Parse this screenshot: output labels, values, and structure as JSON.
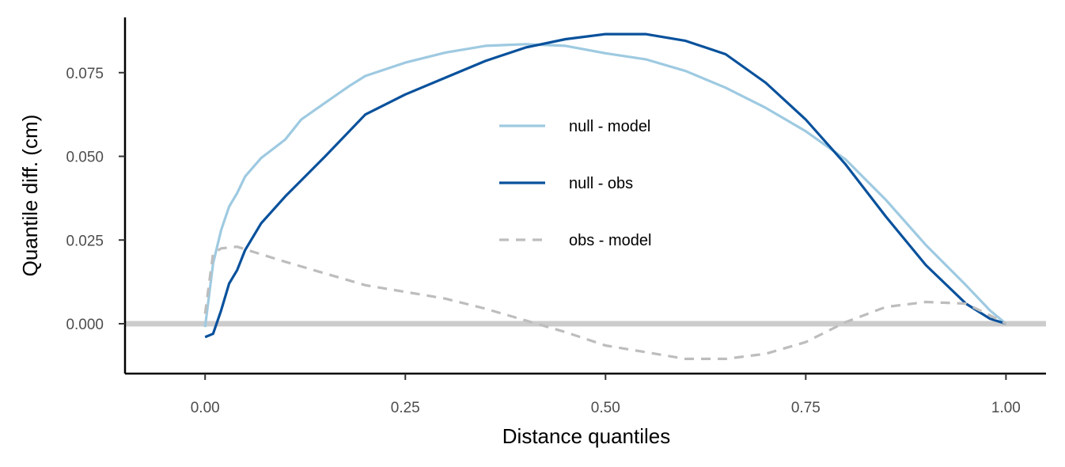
{
  "chart_data": {
    "type": "line",
    "title": "",
    "xlabel": "Distance quantiles",
    "ylabel": "Quantile diff. (cm)",
    "xlim": [
      -0.1,
      1.05
    ],
    "ylim": [
      -0.0149,
      0.0915
    ],
    "x_ticks": [
      {
        "value": 0,
        "label": "0.00"
      },
      {
        "value": 0.25,
        "label": "0.25"
      },
      {
        "value": 0.5,
        "label": "0.50"
      },
      {
        "value": 0.75,
        "label": "0.75"
      },
      {
        "value": 1,
        "label": "1.00"
      }
    ],
    "y_ticks": [
      {
        "value": 0,
        "label": "0.000"
      },
      {
        "value": 0.025,
        "label": "0.025"
      },
      {
        "value": 0.05,
        "label": "0.050"
      },
      {
        "value": 0.075,
        "label": "0.075"
      }
    ],
    "reference_line": {
      "y": 0,
      "color": "#cccccc"
    },
    "grid": false,
    "legend_position": "center",
    "series": [
      {
        "name": "null - model",
        "color": "#9ecae1",
        "dash": "solid",
        "points": [
          [
            0,
            -0.001
          ],
          [
            0.01,
            0.018
          ],
          [
            0.02,
            0.028
          ],
          [
            0.03,
            0.035
          ],
          [
            0.04,
            0.039
          ],
          [
            0.05,
            0.044
          ],
          [
            0.07,
            0.0495
          ],
          [
            0.1,
            0.055
          ],
          [
            0.12,
            0.061
          ],
          [
            0.15,
            0.066
          ],
          [
            0.18,
            0.071
          ],
          [
            0.2,
            0.074
          ],
          [
            0.25,
            0.078
          ],
          [
            0.3,
            0.081
          ],
          [
            0.35,
            0.083
          ],
          [
            0.4,
            0.0835
          ],
          [
            0.45,
            0.083
          ],
          [
            0.5,
            0.0808
          ],
          [
            0.55,
            0.079
          ],
          [
            0.6,
            0.0755
          ],
          [
            0.65,
            0.0705
          ],
          [
            0.7,
            0.0645
          ],
          [
            0.75,
            0.0575
          ],
          [
            0.8,
            0.049
          ],
          [
            0.85,
            0.037
          ],
          [
            0.9,
            0.0235
          ],
          [
            0.95,
            0.0115
          ],
          [
            0.98,
            0.004
          ],
          [
            1,
            0
          ]
        ]
      },
      {
        "name": "null - obs",
        "color": "#08519c",
        "dash": "solid",
        "points": [
          [
            0,
            -0.004
          ],
          [
            0.01,
            -0.003
          ],
          [
            0.02,
            0.004
          ],
          [
            0.03,
            0.012
          ],
          [
            0.04,
            0.016
          ],
          [
            0.05,
            0.022
          ],
          [
            0.07,
            0.03
          ],
          [
            0.1,
            0.038
          ],
          [
            0.15,
            0.05
          ],
          [
            0.2,
            0.0625
          ],
          [
            0.25,
            0.0685
          ],
          [
            0.3,
            0.0735
          ],
          [
            0.35,
            0.0785
          ],
          [
            0.4,
            0.0825
          ],
          [
            0.45,
            0.085
          ],
          [
            0.5,
            0.0865
          ],
          [
            0.55,
            0.0865
          ],
          [
            0.6,
            0.0845
          ],
          [
            0.65,
            0.0805
          ],
          [
            0.7,
            0.072
          ],
          [
            0.75,
            0.061
          ],
          [
            0.8,
            0.0475
          ],
          [
            0.85,
            0.032
          ],
          [
            0.9,
            0.0175
          ],
          [
            0.95,
            0.006
          ],
          [
            0.98,
            0.0015
          ],
          [
            1,
            0
          ]
        ]
      },
      {
        "name": "obs - model",
        "color": "#bdbdbd",
        "dash": "dashed",
        "points": [
          [
            0,
            0.003
          ],
          [
            0.01,
            0.021
          ],
          [
            0.02,
            0.0225
          ],
          [
            0.04,
            0.023
          ],
          [
            0.06,
            0.0215
          ],
          [
            0.1,
            0.0185
          ],
          [
            0.15,
            0.015
          ],
          [
            0.2,
            0.0115
          ],
          [
            0.25,
            0.0095
          ],
          [
            0.3,
            0.0075
          ],
          [
            0.35,
            0.0045
          ],
          [
            0.4,
            0.001
          ],
          [
            0.45,
            -0.0025
          ],
          [
            0.5,
            -0.0065
          ],
          [
            0.55,
            -0.0085
          ],
          [
            0.6,
            -0.0105
          ],
          [
            0.65,
            -0.0105
          ],
          [
            0.7,
            -0.009
          ],
          [
            0.75,
            -0.0055
          ],
          [
            0.8,
            0.0005
          ],
          [
            0.85,
            0.005
          ],
          [
            0.9,
            0.0065
          ],
          [
            0.95,
            0.006
          ],
          [
            0.98,
            0.0025
          ],
          [
            1,
            0
          ]
        ]
      }
    ]
  }
}
